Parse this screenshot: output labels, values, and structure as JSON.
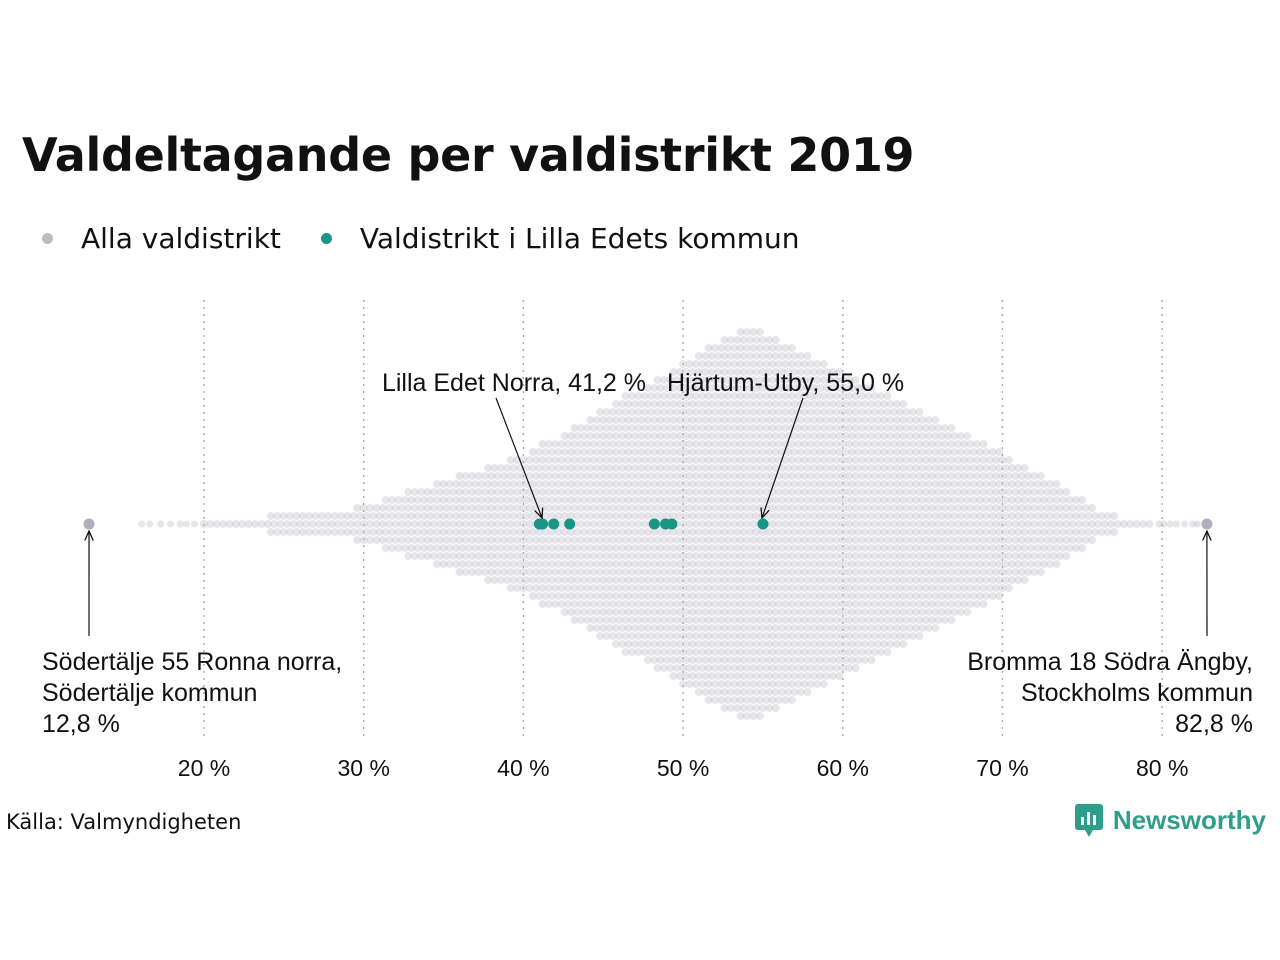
{
  "title": "Valdeltagande per valdistrikt 2019",
  "legend": [
    {
      "label": "Alla valdistrikt",
      "color": "#bdbac9"
    },
    {
      "label": "Valdistrikt i Lilla Edets kommun",
      "color": "#1a9485"
    }
  ],
  "source": "Källa: Valmyndigheten",
  "brand": {
    "name": "Newsworthy",
    "icon": "newsworthy-logo-icon",
    "color": "#2e9e8a"
  },
  "chart_data": {
    "type": "scatter",
    "subtype": "beeswarm",
    "x_unit": "%",
    "xlim": [
      12,
      83.5
    ],
    "x_ticks": [
      20,
      30,
      40,
      50,
      60,
      70,
      80
    ],
    "x_tick_labels": [
      "20 %",
      "30 %",
      "40 %",
      "50 %",
      "60 %",
      "70 %",
      "80 %"
    ],
    "grid": "vertical dotted",
    "series": [
      {
        "name": "Alla valdistrikt",
        "color": "#bdbac9",
        "distribution": "approx. diamond-shaped density, peak near 54 %, range 12,8 % to 82,8 %",
        "highlighted_extremes": [
          12.8,
          82.8
        ]
      },
      {
        "name": "Valdistrikt i Lilla Edets kommun",
        "color": "#1a9485",
        "values": [
          41.0,
          41.2,
          41.9,
          42.9,
          48.2,
          48.9,
          49.3,
          55.0
        ]
      }
    ],
    "annotations": [
      {
        "x": 41.2,
        "lines": [
          "Lilla Edet Norra, 41,2 %"
        ]
      },
      {
        "x": 55.0,
        "lines": [
          "Hjärtum-Utby, 55,0 %"
        ]
      },
      {
        "x": 12.8,
        "lines": [
          "Södertälje 55 Ronna norra,",
          "Södertälje kommun",
          "12,8 %"
        ]
      },
      {
        "x": 82.8,
        "lines": [
          "Bromma 18 Södra Ängby,",
          "Stockholms kommun",
          "82,8 %"
        ]
      }
    ]
  }
}
